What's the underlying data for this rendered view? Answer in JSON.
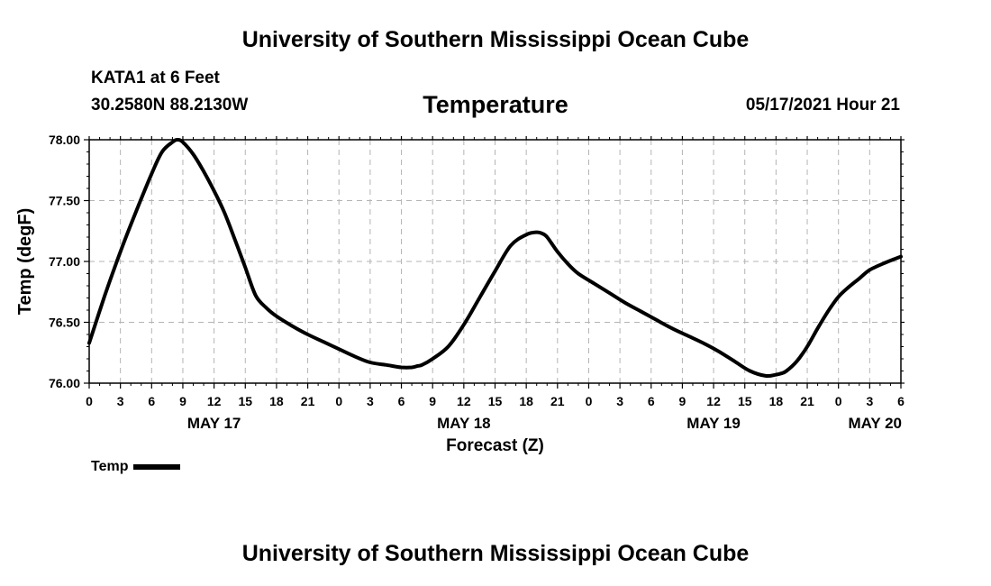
{
  "header": {
    "title": "University of Southern Mississippi Ocean Cube",
    "station": "KATA1 at 6 Feet",
    "coords": "30.2580N  88.2130W",
    "run_time": "05/17/2021 Hour 21"
  },
  "footer": {
    "title": "University of Southern Mississippi Ocean Cube"
  },
  "legend": {
    "label": "Temp",
    "color": "#000000"
  },
  "chart_data": {
    "type": "line",
    "title": "Temperature",
    "xlabel": "Forecast (Z)",
    "ylabel": "Temp (degF)",
    "xlim": [
      0,
      78
    ],
    "ylim": [
      76.0,
      78.0
    ],
    "grid": true,
    "x_ticks": [
      0,
      3,
      6,
      9,
      12,
      15,
      18,
      21,
      24,
      27,
      30,
      33,
      36,
      39,
      42,
      45,
      48,
      51,
      54,
      57,
      60,
      63,
      66,
      69,
      72,
      75,
      78
    ],
    "x_tick_labels": [
      "0",
      "3",
      "6",
      "9",
      "12",
      "15",
      "18",
      "21",
      "0",
      "3",
      "6",
      "9",
      "12",
      "15",
      "18",
      "21",
      "0",
      "3",
      "6",
      "9",
      "12",
      "15",
      "18",
      "21",
      "0",
      "3",
      "6"
    ],
    "y_ticks": [
      76.0,
      76.5,
      77.0,
      77.5,
      78.0
    ],
    "y_tick_labels": [
      "76.00",
      "76.50",
      "77.00",
      "77.50",
      "78.00"
    ],
    "day_labels": [
      {
        "x": 12,
        "label": "MAY 17"
      },
      {
        "x": 36,
        "label": "MAY 18"
      },
      {
        "x": 60,
        "label": "MAY 19"
      },
      {
        "x": 78,
        "label": "MAY 20"
      }
    ],
    "series": [
      {
        "name": "Temp",
        "x": [
          0,
          1.5,
          3,
          4.5,
          6,
          7,
          8,
          8.5,
          9,
          10,
          11,
          12,
          13,
          14,
          15,
          16,
          17,
          18,
          19.5,
          21,
          22.5,
          24,
          25.5,
          27,
          28.5,
          30,
          31,
          31.5,
          32,
          33,
          34.5,
          36,
          37.5,
          39,
          40.5,
          42,
          43,
          43.5,
          44,
          45,
          46,
          47,
          48.5,
          50,
          51.5,
          53,
          54.5,
          56,
          57.5,
          59,
          60.5,
          62,
          63.5,
          65,
          66,
          66.5,
          67,
          68,
          69,
          70,
          71,
          72,
          73,
          74,
          75,
          76.5,
          78
        ],
        "values": [
          76.33,
          76.72,
          77.08,
          77.41,
          77.72,
          77.9,
          77.98,
          78.0,
          77.98,
          77.88,
          77.74,
          77.58,
          77.4,
          77.18,
          76.95,
          76.72,
          76.62,
          76.55,
          76.47,
          76.4,
          76.34,
          76.28,
          76.22,
          76.17,
          76.15,
          76.13,
          76.13,
          76.14,
          76.15,
          76.2,
          76.3,
          76.48,
          76.7,
          76.92,
          77.13,
          77.22,
          77.24,
          77.23,
          77.2,
          77.08,
          76.98,
          76.9,
          76.82,
          76.74,
          76.66,
          76.59,
          76.52,
          76.45,
          76.39,
          76.33,
          76.26,
          76.18,
          76.1,
          76.06,
          76.07,
          76.08,
          76.1,
          76.18,
          76.3,
          76.45,
          76.59,
          76.71,
          76.79,
          76.86,
          76.93,
          76.99,
          77.04
        ]
      }
    ]
  }
}
